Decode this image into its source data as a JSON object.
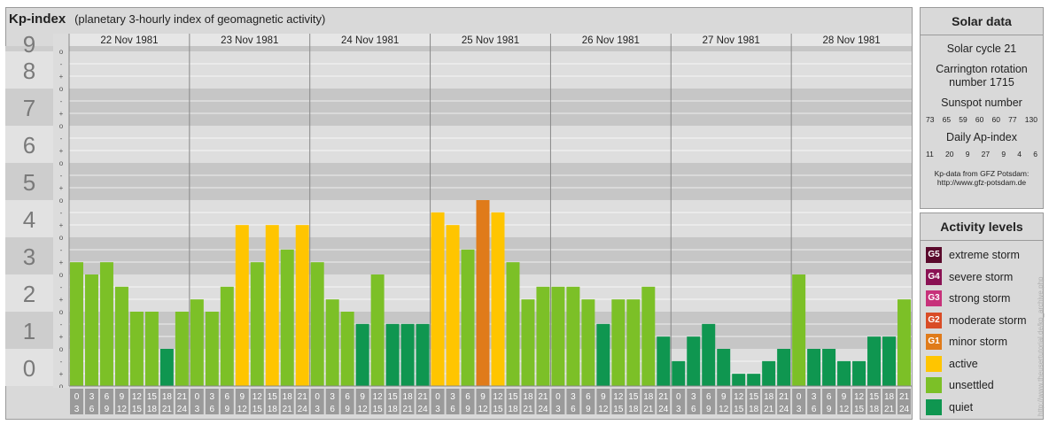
{
  "title": "Kp-index",
  "subtitle": "(planetary 3-hourly index of geomagnetic activity)",
  "watermark": "http://www.theusertutorial.de/kp_archive.php",
  "chart_data": {
    "type": "bar",
    "y_labels": [
      "0",
      "1",
      "2",
      "3",
      "4",
      "5",
      "6",
      "7",
      "8",
      "9"
    ],
    "thirds_labels": [
      "o",
      "+",
      "-"
    ],
    "ylim": [
      0,
      9
    ],
    "days": [
      "22 Nov 1981",
      "23 Nov 1981",
      "24 Nov 1981",
      "25 Nov 1981",
      "26 Nov 1981",
      "27 Nov 1981",
      "28 Nov 1981"
    ],
    "slot_labels": [
      [
        "0",
        "3"
      ],
      [
        "3",
        "6"
      ],
      [
        "6",
        "9"
      ],
      [
        "9",
        "12"
      ],
      [
        "12",
        "15"
      ],
      [
        "15",
        "18"
      ],
      [
        "18",
        "21"
      ],
      [
        "21",
        "24"
      ]
    ],
    "values": [
      [
        3.33,
        3.0,
        3.33,
        2.67,
        2.0,
        2.0,
        1.0,
        2.0
      ],
      [
        2.33,
        2.0,
        2.67,
        4.33,
        3.33,
        4.33,
        3.67,
        4.33
      ],
      [
        3.33,
        2.33,
        2.0,
        1.67,
        3.0,
        1.67,
        1.67,
        1.67
      ],
      [
        4.67,
        4.33,
        3.67,
        5.0,
        4.67,
        3.33,
        2.33,
        2.67
      ],
      [
        2.67,
        2.67,
        2.33,
        1.67,
        2.33,
        2.33,
        2.67,
        1.33
      ],
      [
        0.67,
        1.33,
        1.67,
        1.0,
        0.33,
        0.33,
        0.67,
        1.0
      ],
      [
        3.0,
        1.0,
        1.0,
        0.67,
        0.67,
        1.33,
        1.33,
        2.33
      ]
    ]
  },
  "colors": {
    "quiet": "#0f9650",
    "unsettled": "#7cc027",
    "active": "#ffc500",
    "g1": "#e07b1a",
    "g2": "#d94c26",
    "g3": "#c7317a",
    "g4": "#8a1254",
    "g5": "#5a0a2c",
    "band_dark": "#c6c6c6",
    "band_light": "#dedede",
    "axis_cell": "#9a9a9a"
  },
  "solar": {
    "title": "Solar data",
    "cycle": "Solar cycle 21",
    "carrington_line1": "Carrington rotation",
    "carrington_line2": "number 1715",
    "sunspot_label": "Sunspot number",
    "sunspot_values": [
      "73",
      "65",
      "59",
      "60",
      "60",
      "77",
      "130"
    ],
    "ap_label": "Daily Ap-index",
    "ap_values": [
      "11",
      "20",
      "9",
      "27",
      "9",
      "4",
      "6"
    ],
    "credit_line1": "Kp-data from GFZ Potsdam:",
    "credit_line2": "http://www.gfz-potsdam.de"
  },
  "activity": {
    "title": "Activity levels",
    "items": [
      {
        "badge": "G5",
        "label": "extreme storm",
        "color": "#5a0a2c"
      },
      {
        "badge": "G4",
        "label": "severe storm",
        "color": "#8a1254"
      },
      {
        "badge": "G3",
        "label": "strong storm",
        "color": "#c7317a"
      },
      {
        "badge": "G2",
        "label": "moderate storm",
        "color": "#d94c26"
      },
      {
        "badge": "G1",
        "label": "minor storm",
        "color": "#e07b1a"
      },
      {
        "badge": "",
        "label": "active",
        "color": "#ffc500"
      },
      {
        "badge": "",
        "label": "unsettled",
        "color": "#7cc027"
      },
      {
        "badge": "",
        "label": "quiet",
        "color": "#0f9650"
      }
    ]
  }
}
